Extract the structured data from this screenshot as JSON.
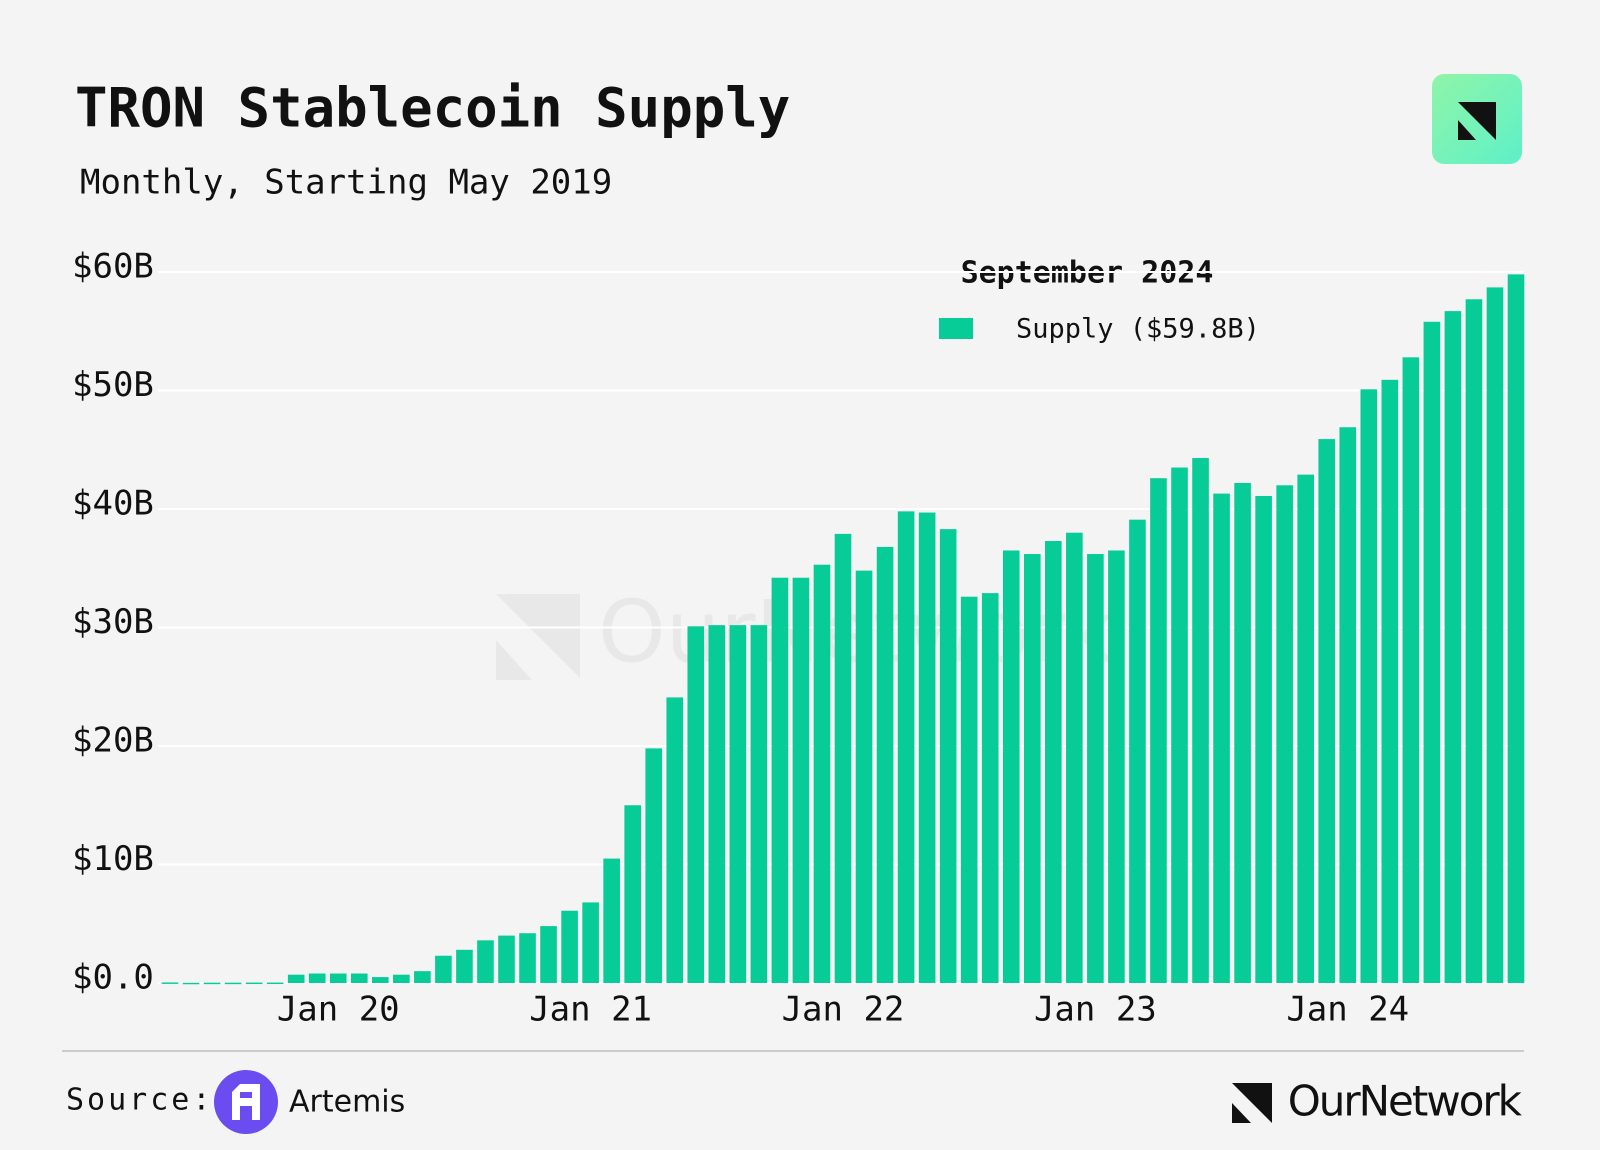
{
  "chart_data": {
    "type": "bar",
    "title": "TRON Stablecoin Supply",
    "subtitle": "Monthly, Starting May 2019",
    "legend_title": "September 2024",
    "legend_label": "Supply ($59.8B)",
    "color": "#07cc98",
    "categories": [
      null,
      null,
      null,
      null,
      null,
      null,
      null,
      null,
      "Jan 20",
      null,
      null,
      null,
      null,
      null,
      null,
      null,
      null,
      null,
      null,
      null,
      "Jan 21",
      null,
      null,
      null,
      null,
      null,
      null,
      null,
      null,
      null,
      null,
      null,
      "Jan 22",
      null,
      null,
      null,
      null,
      null,
      null,
      null,
      null,
      null,
      null,
      null,
      "Jan 23",
      null,
      null,
      null,
      null,
      null,
      null,
      null,
      null,
      null,
      null,
      null,
      "Jan 24",
      null,
      null,
      null,
      null,
      null,
      null,
      null,
      null
    ],
    "values": [
      0.05,
      0.02,
      0.03,
      0.03,
      0.04,
      0.04,
      0.7,
      0.8,
      0.8,
      0.8,
      0.5,
      0.7,
      1.0,
      2.3,
      2.8,
      3.6,
      4.0,
      4.2,
      4.8,
      6.1,
      6.8,
      10.5,
      15.0,
      19.8,
      24.1,
      30.1,
      30.2,
      30.2,
      30.2,
      34.2,
      34.2,
      35.3,
      37.9,
      34.8,
      36.8,
      39.8,
      39.7,
      38.3,
      32.6,
      32.9,
      36.5,
      36.2,
      37.3,
      38.0,
      36.2,
      36.5,
      39.1,
      42.6,
      43.5,
      44.3,
      41.3,
      42.2,
      41.1,
      42.0,
      42.9,
      45.9,
      46.9,
      50.1,
      50.9,
      52.8,
      55.8,
      56.7,
      57.7,
      58.7,
      59.8
    ],
    "ylim": [
      0,
      60
    ],
    "yticks": [
      {
        "value": 0,
        "label": "$0.0"
      },
      {
        "value": 10,
        "label": "$10B"
      },
      {
        "value": 20,
        "label": "$20B"
      },
      {
        "value": 30,
        "label": "$30B"
      },
      {
        "value": 40,
        "label": "$40B"
      },
      {
        "value": 50,
        "label": "$50B"
      },
      {
        "value": 60,
        "label": "$60B"
      }
    ],
    "grid": true
  },
  "footer": {
    "source": "Source:",
    "provider": "Artemis",
    "brand": "OurNetwork",
    "watermark": "OurNetwork"
  }
}
